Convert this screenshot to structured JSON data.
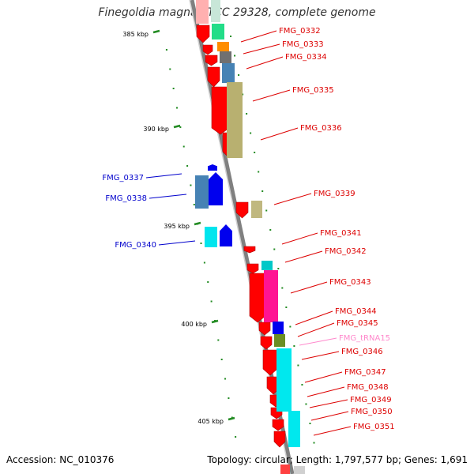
{
  "title": "Finegoldia magna ATCC 29328, complete genome",
  "accession": "Accession: NC_010376",
  "summary": "Topology: circular; Length: 1,797,577 bp; Genes: 1,691",
  "colors": {
    "cds": "#ff0000",
    "cds_blue": "#0000ee",
    "label_red": "#dd0000",
    "label_blue": "#0000cc",
    "label_trna": "#ff88cc",
    "backbone": "#808080",
    "tick": "#228b22"
  },
  "ticks": [
    {
      "label": "385 kbp"
    },
    {
      "label": "390 kbp"
    },
    {
      "label": "395 kbp"
    },
    {
      "label": "400 kbp"
    },
    {
      "label": "405 kbp"
    }
  ],
  "genes": [
    {
      "label": "FMG_0332",
      "side": "right"
    },
    {
      "label": "FMG_0333",
      "side": "right"
    },
    {
      "label": "FMG_0334",
      "side": "right"
    },
    {
      "label": "FMG_0335",
      "side": "right"
    },
    {
      "label": "FMG_0336",
      "side": "right"
    },
    {
      "label": "FMG_0337",
      "side": "left"
    },
    {
      "label": "FMG_0338",
      "side": "left"
    },
    {
      "label": "FMG_0339",
      "side": "right"
    },
    {
      "label": "FMG_0340",
      "side": "left"
    },
    {
      "label": "FMG_0341",
      "side": "right"
    },
    {
      "label": "FMG_0342",
      "side": "right"
    },
    {
      "label": "FMG_0343",
      "side": "right"
    },
    {
      "label": "FMG_0344",
      "side": "right"
    },
    {
      "label": "FMG_0345",
      "side": "right"
    },
    {
      "label": "FMG_tRNA15",
      "side": "right"
    },
    {
      "label": "FMG_0346",
      "side": "right"
    },
    {
      "label": "FMG_0347",
      "side": "right"
    },
    {
      "label": "FMG_0348",
      "side": "right"
    },
    {
      "label": "FMG_0349",
      "side": "right"
    },
    {
      "label": "FMG_0350",
      "side": "right"
    },
    {
      "label": "FMG_0351",
      "side": "right"
    }
  ]
}
